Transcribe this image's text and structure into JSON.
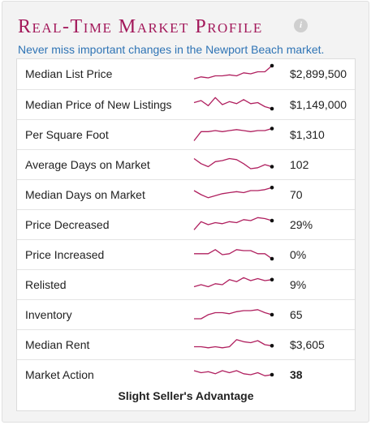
{
  "panel": {
    "title": "Real-Time Market Profile",
    "info_icon": "info-icon",
    "subtitle": "Never miss important changes in the Newport Beach market."
  },
  "colors": {
    "title": "#a3195b",
    "subtitle": "#2f74b5",
    "sparkline": "#b0205f"
  },
  "metrics": [
    {
      "label": "Median List Price",
      "value": "$2,899,500",
      "trend": [
        3,
        5,
        4,
        6,
        6,
        7,
        6,
        9,
        8,
        10,
        10,
        16
      ],
      "bold": false
    },
    {
      "label": "Median Price of New Listings",
      "value": "$1,149,000",
      "trend": [
        10,
        12,
        7,
        15,
        8,
        11,
        9,
        13,
        9,
        10,
        6,
        4
      ],
      "bold": false
    },
    {
      "label": "Per Square Foot",
      "value": "$1,310",
      "trend": [
        2,
        11,
        11,
        12,
        11,
        12,
        13,
        12,
        11,
        12,
        12,
        14
      ],
      "bold": false
    },
    {
      "label": "Average Days on Market",
      "value": "102",
      "trend": [
        14,
        9,
        6,
        11,
        12,
        14,
        13,
        9,
        4,
        5,
        8,
        6
      ],
      "bold": false
    },
    {
      "label": "Median Days on Market",
      "value": "70",
      "trend": [
        12,
        8,
        5,
        7,
        9,
        10,
        11,
        10,
        12,
        12,
        13,
        15
      ],
      "bold": false
    },
    {
      "label": "Price Decreased",
      "value": "29%",
      "trend": [
        3,
        11,
        8,
        10,
        9,
        11,
        10,
        13,
        12,
        15,
        14,
        12
      ],
      "bold": false
    },
    {
      "label": "Price Increased",
      "value": "0%",
      "trend": [
        9,
        9,
        9,
        13,
        8,
        9,
        13,
        12,
        12,
        9,
        9,
        4
      ],
      "bold": false
    },
    {
      "label": "Relisted",
      "value": "9%",
      "trend": [
        6,
        8,
        6,
        9,
        8,
        13,
        11,
        15,
        12,
        14,
        12,
        13
      ],
      "bold": false
    },
    {
      "label": "Inventory",
      "value": "65",
      "trend": [
        4,
        4,
        8,
        10,
        10,
        9,
        11,
        12,
        12,
        13,
        10,
        8
      ],
      "bold": false
    },
    {
      "label": "Median Rent",
      "value": "$3,605",
      "trend": [
        6,
        6,
        5,
        6,
        5,
        6,
        13,
        11,
        10,
        12,
        8,
        7
      ],
      "bold": false
    },
    {
      "label": "Market Action",
      "value": "38",
      "trend": [
        12,
        10,
        11,
        9,
        12,
        10,
        12,
        9,
        8,
        10,
        7,
        8
      ],
      "bold": true
    }
  ],
  "footer": "Slight Seller's Advantage"
}
